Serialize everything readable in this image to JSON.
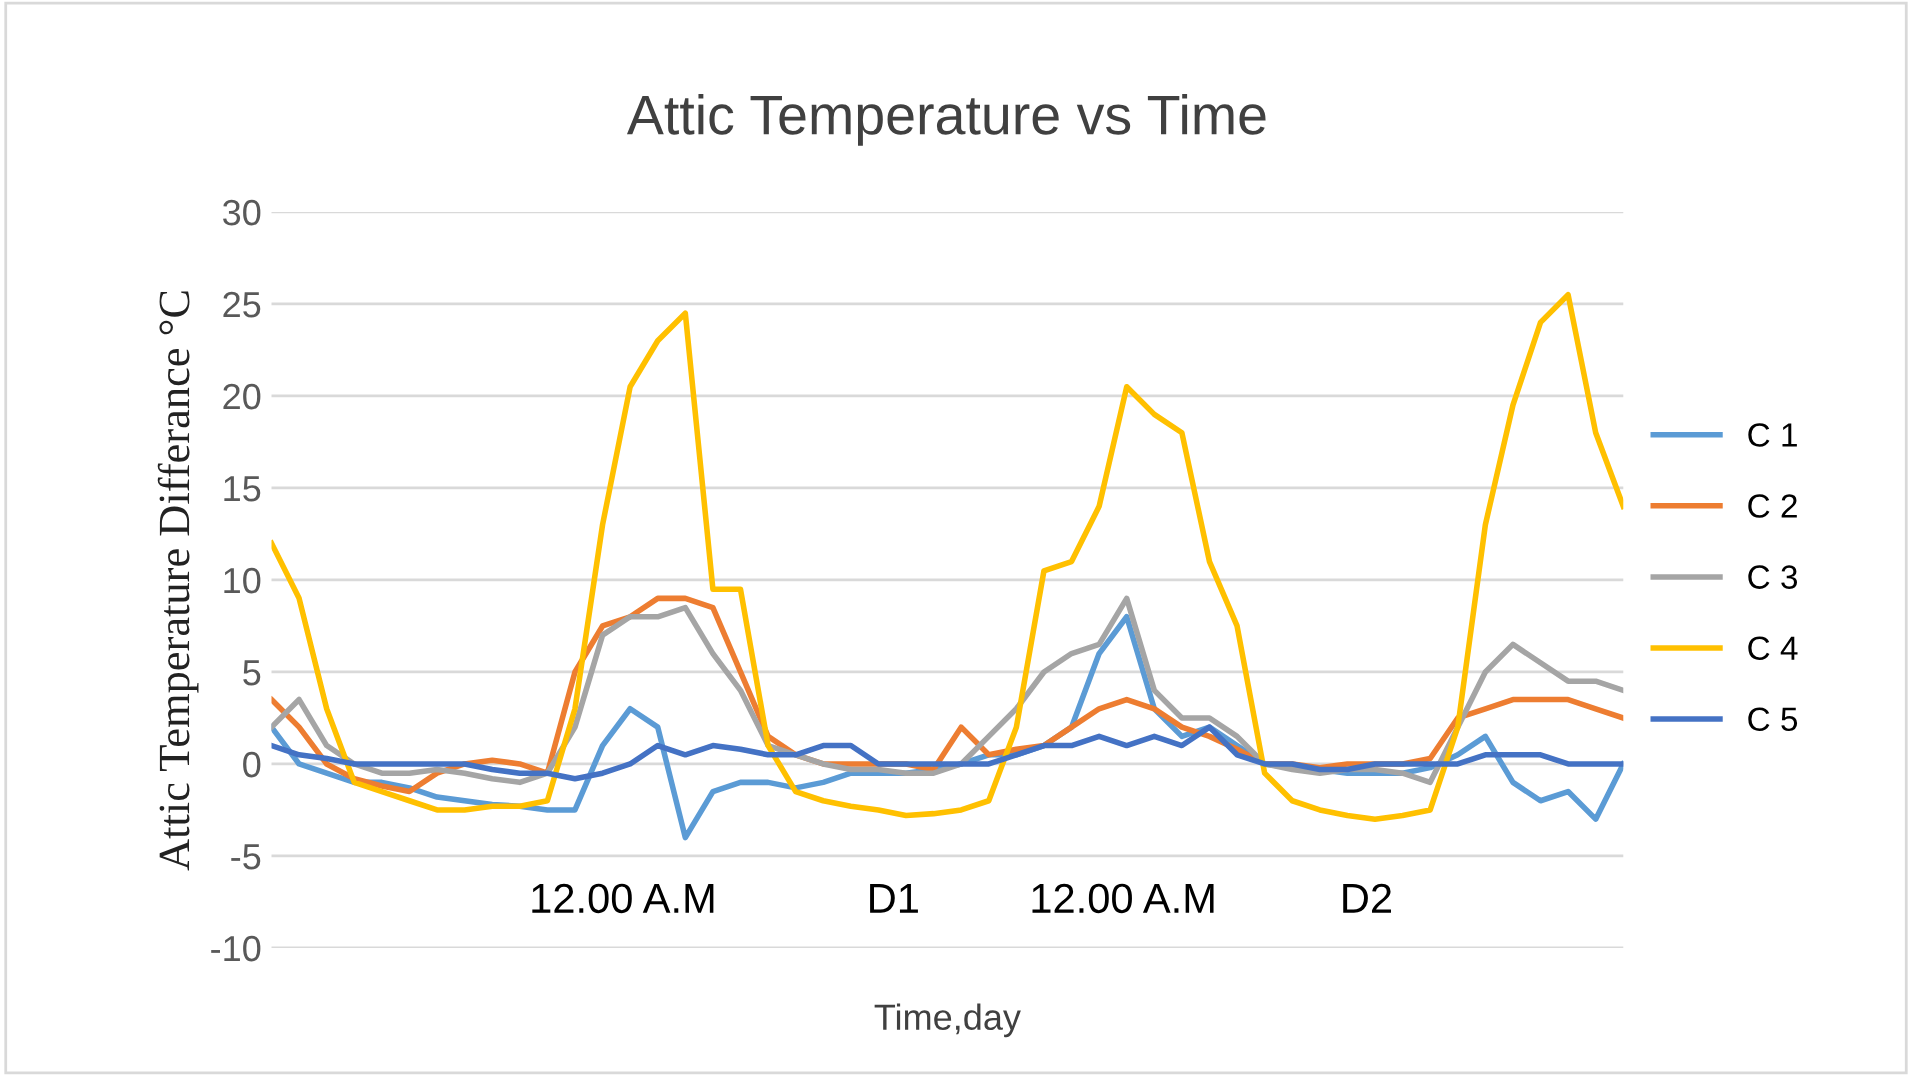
{
  "chart_data": {
    "type": "line",
    "title": "Attic Temperature vs Time",
    "xlabel": "Time,day",
    "ylabel": "Attic Temperature Differance °C",
    "annotations": [
      "12.00 A.M",
      "D1",
      "12.00 A.M",
      "D2"
    ],
    "categories": [
      null,
      null,
      null,
      null,
      null,
      null,
      null,
      null,
      null,
      null,
      null,
      null,
      null,
      null,
      null,
      null,
      null,
      null,
      null,
      null,
      null,
      null,
      null,
      null,
      null,
      null,
      null,
      null,
      null,
      null,
      null,
      null,
      null,
      null,
      null,
      null,
      null,
      null,
      null,
      null,
      null,
      null,
      null,
      null,
      null,
      null,
      null,
      null,
      null,
      null
    ],
    "series": [
      {
        "name": "C 1",
        "color": "#5b9bd5",
        "values": [
          2,
          0,
          -0.5,
          -1,
          -1,
          -1.3,
          -1.8,
          -2,
          -2.2,
          -2.3,
          -2.5,
          -2.5,
          1,
          3,
          2,
          -4,
          -1.5,
          -1,
          -1,
          -1.3,
          -1,
          -0.5,
          -0.5,
          -0.5,
          -0.3,
          0,
          0.5,
          0.5,
          1,
          2,
          6,
          8,
          3,
          1.5,
          2,
          1,
          0,
          -0.2,
          -0.3,
          -0.5,
          -0.5,
          -0.5,
          -0.2,
          0.5,
          1.5,
          -1,
          -2,
          -1.5,
          -3,
          0
        ]
      },
      {
        "name": "C 2",
        "color": "#ed7d31",
        "values": [
          3.5,
          2,
          0,
          -0.8,
          -1.2,
          -1.5,
          -0.5,
          0,
          0.2,
          0,
          -0.5,
          5,
          7.5,
          8,
          9,
          9,
          8.5,
          5,
          1.5,
          0.5,
          0,
          0,
          0,
          0,
          -0.3,
          2,
          0.5,
          0.8,
          1,
          2,
          3,
          3.5,
          3,
          2,
          1.5,
          0.8,
          0,
          0,
          -0.2,
          0,
          0,
          0,
          0.3,
          2.5,
          3,
          3.5,
          3.5,
          3.5,
          3,
          2.5
        ]
      },
      {
        "name": "C 3",
        "color": "#a5a5a5",
        "values": [
          2,
          3.5,
          1,
          0,
          -0.5,
          -0.5,
          -0.3,
          -0.5,
          -0.8,
          -1,
          -0.5,
          2,
          7,
          8,
          8,
          8.5,
          6,
          4,
          1,
          0.5,
          0,
          -0.3,
          -0.3,
          -0.5,
          -0.5,
          0,
          1.5,
          3,
          5,
          6,
          6.5,
          9,
          4,
          2.5,
          2.5,
          1.5,
          0,
          -0.3,
          -0.5,
          -0.3,
          -0.3,
          -0.5,
          -1,
          2,
          5,
          6.5,
          5.5,
          4.5,
          4.5,
          4
        ]
      },
      {
        "name": "C 4",
        "color": "#ffc000",
        "values": [
          12,
          9,
          3,
          -1,
          -1.5,
          -2,
          -2.5,
          -2.5,
          -2.3,
          -2.3,
          -2,
          3,
          13,
          20.5,
          23,
          24.5,
          9.5,
          9.5,
          1,
          -1.5,
          -2,
          -2.3,
          -2.5,
          -2.8,
          -2.7,
          -2.5,
          -2,
          2,
          10.5,
          11,
          14,
          20.5,
          19,
          18,
          11,
          7.5,
          -0.5,
          -2,
          -2.5,
          -2.8,
          -3,
          -2.8,
          -2.5,
          2,
          13,
          19.5,
          24,
          25.5,
          18,
          14
        ]
      },
      {
        "name": "C 5",
        "color": "#4472c4",
        "values": [
          1,
          0.5,
          0.3,
          0,
          0,
          0,
          0,
          0,
          -0.3,
          -0.5,
          -0.5,
          -0.8,
          -0.5,
          0,
          1,
          0.5,
          1,
          0.8,
          0.5,
          0.5,
          1,
          1,
          0,
          0,
          0,
          0,
          0,
          0.5,
          1,
          1,
          1.5,
          1,
          1.5,
          1,
          2,
          0.5,
          0,
          0,
          -0.3,
          -0.3,
          0,
          0,
          0,
          0,
          0.5,
          0.5,
          0.5,
          0,
          0,
          0
        ]
      }
    ],
    "ylim": [
      -10,
      30
    ],
    "yticks": [
      -10,
      -5,
      0,
      5,
      10,
      15,
      20,
      25,
      30
    ],
    "grid": "y",
    "legend": "right",
    "tick_labels": "y"
  }
}
